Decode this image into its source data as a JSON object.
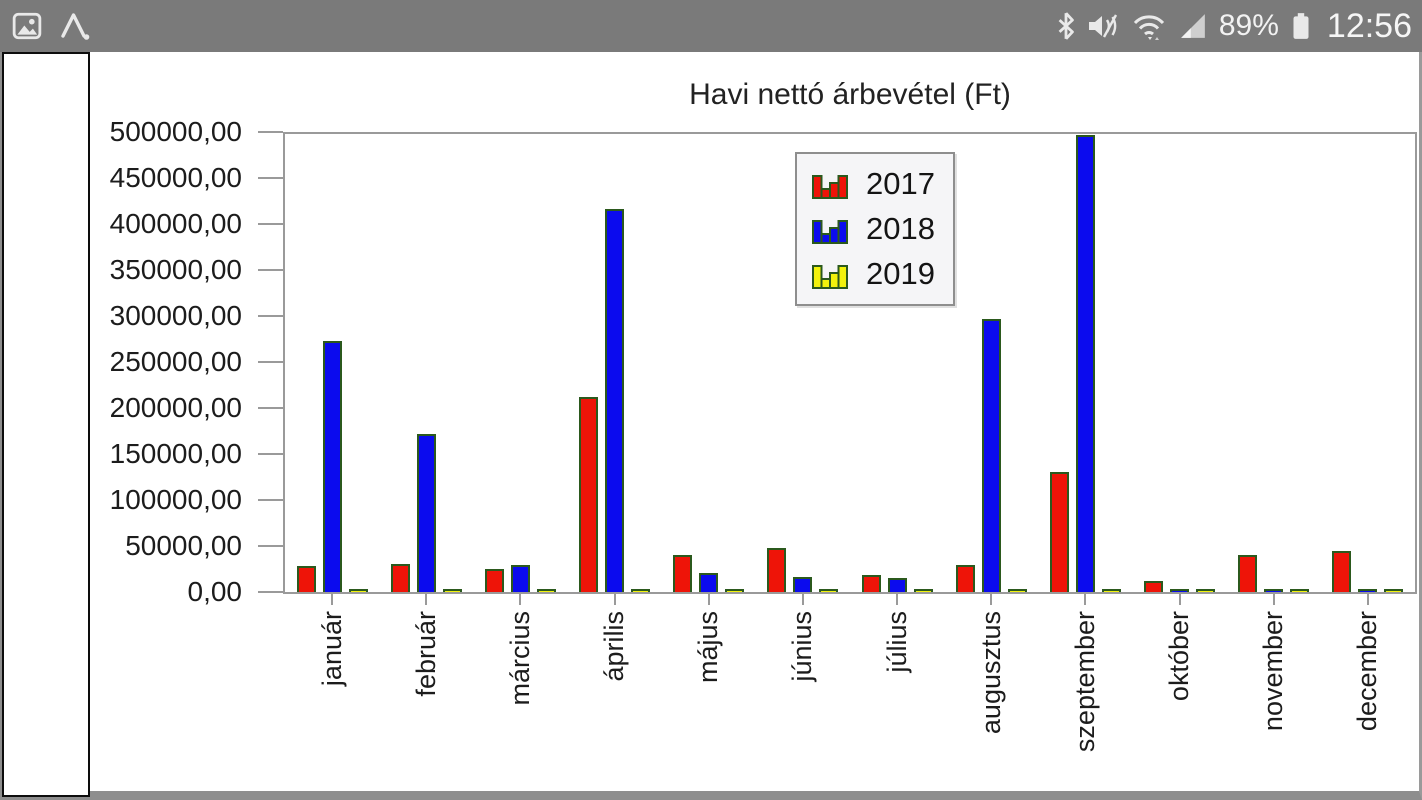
{
  "status_bar": {
    "time": "12:56",
    "battery_percent": "89%",
    "icons_left": [
      "gallery-icon",
      "letter-a-icon"
    ],
    "icons_right": [
      "bluetooth-icon",
      "mute-vibrate-icon",
      "wifi-icon",
      "cellular-signal-icon",
      "battery-icon"
    ],
    "colors": {
      "background": "#7a7a7a",
      "foreground": "#efefef"
    }
  },
  "chart_data": {
    "type": "bar",
    "title": "Havi nettó árbevétel (Ft)",
    "categories": [
      "január",
      "február",
      "március",
      "április",
      "május",
      "június",
      "július",
      "augusztus",
      "szeptember",
      "október",
      "november",
      "december"
    ],
    "series": [
      {
        "name": "2017",
        "color": "#ee1408",
        "values": [
          28000,
          31000,
          25000,
          213000,
          40000,
          48000,
          19000,
          30000,
          131000,
          12000,
          40000,
          45000
        ]
      },
      {
        "name": "2018",
        "color": "#0b0bee",
        "values": [
          274000,
          173000,
          30000,
          418000,
          21000,
          16000,
          15000,
          298000,
          499000,
          2500,
          2500,
          2500
        ]
      },
      {
        "name": "2019",
        "color": "#f2f20c",
        "values": [
          2500,
          2500,
          2500,
          2500,
          2500,
          2500,
          2500,
          2500,
          2500,
          2500,
          2500,
          2500
        ]
      }
    ],
    "ylim": [
      0,
      500000
    ],
    "ytick_step": 50000,
    "ytick_labels": [
      "0,00",
      "50000,00",
      "100000,00",
      "150000,00",
      "200000,00",
      "250000,00",
      "300000,00",
      "350000,00",
      "400000,00",
      "450000,00",
      "500000,00"
    ],
    "xlabel": "",
    "ylabel": "",
    "legend_position": "inside-top-center",
    "grid": false,
    "bar_border_color": "#2b591d",
    "axis_color": "#9a9a9a",
    "text_color": "#1c1c1c"
  }
}
